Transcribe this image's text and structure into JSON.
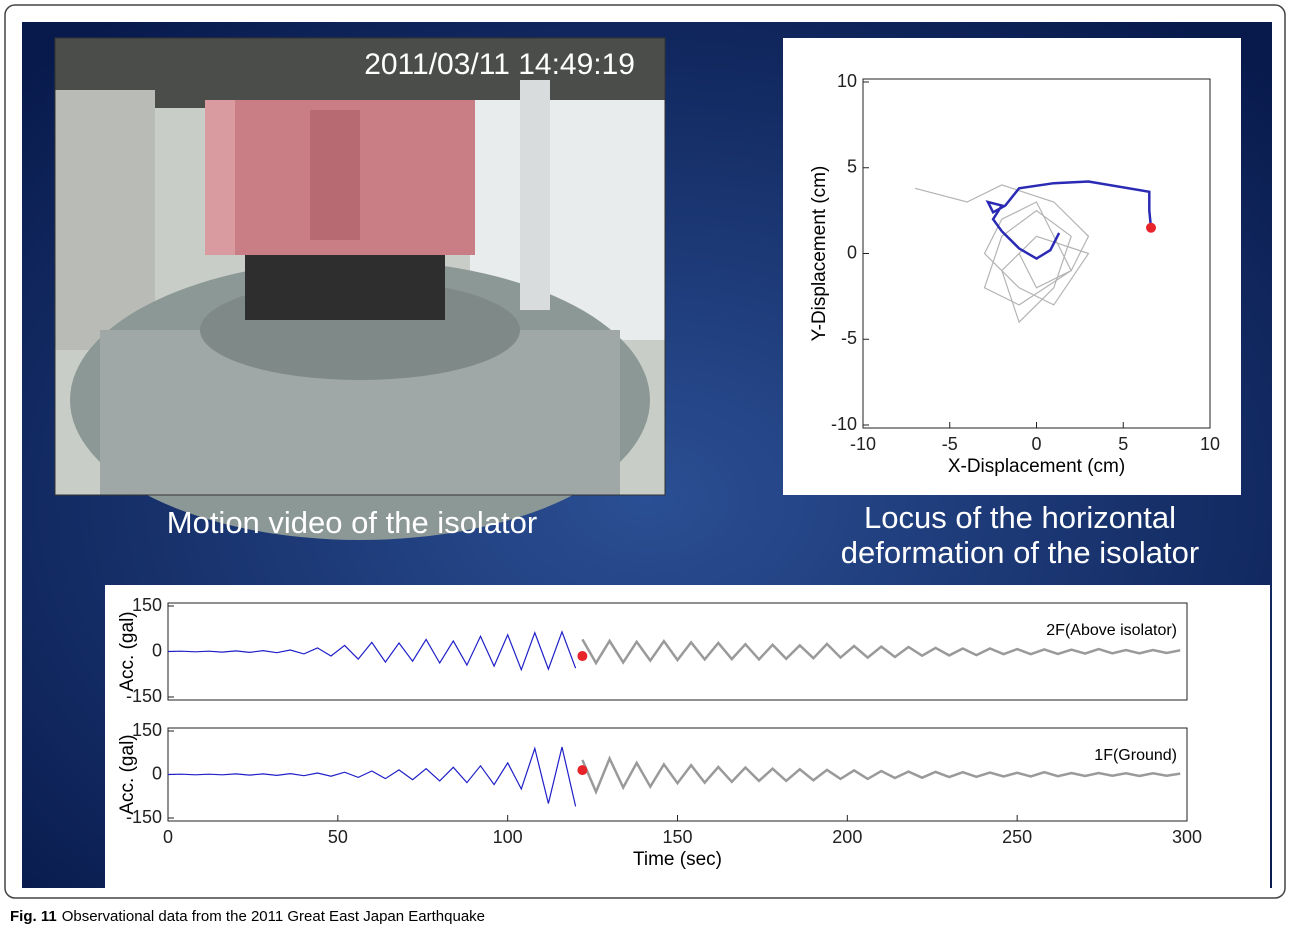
{
  "figure": {
    "caption_label": "Fig. 11",
    "caption": "Observational data from the 2011 Great East Japan Earthquake"
  },
  "video": {
    "timestamp": "2011/03/11  14:49:19",
    "label": "Motion video of the isolator"
  },
  "chart_data": [
    {
      "type": "line",
      "title_lines": [
        "Locus of the horizontal",
        "deformation of the isolator"
      ],
      "x_label": "X-Displacement (cm)",
      "y_label": "Y-Displacement (cm)",
      "xlim": [
        -10,
        10
      ],
      "ylim": [
        -10,
        10
      ],
      "xticks": [
        -10,
        -5,
        0,
        5,
        10
      ],
      "yticks": [
        -10,
        -5,
        0,
        5,
        10
      ],
      "series": [
        {
          "color": "#b4b4b4",
          "x": [
            -7,
            -4,
            -2,
            1,
            3,
            2,
            -1,
            -3,
            -2,
            0,
            2,
            1,
            -1,
            -2,
            0,
            3,
            1,
            -1,
            -3,
            -2,
            0,
            2,
            0,
            -1
          ],
          "values": [
            3.8,
            3,
            4,
            3,
            1,
            -1,
            -3,
            -2,
            1,
            2.5,
            1,
            -2,
            -4,
            -1,
            1,
            0,
            -3,
            -2,
            0,
            2,
            3,
            -1,
            -2,
            0
          ]
        },
        {
          "color": "#2a2ab4",
          "x": [
            1.3,
            0.8,
            0,
            -1,
            -2,
            -2.5,
            -2,
            -2.8,
            -2.5,
            -1.8,
            -1,
            1,
            3,
            6.5,
            6.5,
            6.6
          ],
          "values": [
            1.2,
            0.2,
            -0.3,
            0.3,
            1.3,
            2,
            2.8,
            3,
            2.4,
            2.8,
            3.8,
            4.1,
            4.2,
            3.6,
            2.5,
            1.5
          ]
        }
      ],
      "marker": {
        "color": "#e8242a",
        "x": 6.6,
        "y": 1.5
      }
    },
    {
      "type": "line",
      "annotation": "2F(Above isolator)",
      "y_label": "Acc. (gal)",
      "xlim": [
        0,
        300
      ],
      "ylim": [
        -150,
        150
      ],
      "yticks": [
        150,
        0,
        -150
      ],
      "series": [
        {
          "color": "#1f1fc8",
          "x": [
            0,
            4,
            8,
            12,
            16,
            20,
            24,
            28,
            32,
            36,
            40,
            44,
            48,
            52,
            56,
            60,
            64,
            68,
            72,
            76,
            80,
            84,
            88,
            92,
            96,
            100,
            104,
            108,
            112,
            116,
            120
          ],
          "values": [
            0,
            1,
            -1,
            1,
            -2,
            2,
            -3,
            3,
            -4,
            5,
            -8,
            12,
            -15,
            20,
            -25,
            30,
            -35,
            28,
            -32,
            40,
            -38,
            35,
            -45,
            50,
            -48,
            55,
            -60,
            62,
            -58,
            65,
            -55
          ]
        },
        {
          "color": "#9a9a9a",
          "x": [
            122,
            126,
            130,
            134,
            138,
            142,
            146,
            150,
            154,
            158,
            162,
            166,
            170,
            174,
            178,
            182,
            186,
            190,
            194,
            198,
            202,
            206,
            210,
            214,
            218,
            222,
            226,
            230,
            234,
            238,
            242,
            246,
            250,
            254,
            258,
            262,
            266,
            270,
            274,
            278,
            282,
            286,
            290,
            294,
            298
          ],
          "values": [
            40,
            -38,
            35,
            -36,
            32,
            -30,
            34,
            -28,
            30,
            -26,
            28,
            -25,
            24,
            -26,
            22,
            -24,
            20,
            -22,
            25,
            -20,
            18,
            -20,
            16,
            -18,
            15,
            -14,
            12,
            -13,
            10,
            -12,
            10,
            -9,
            8,
            -9,
            7,
            -8,
            6,
            -7,
            8,
            -6,
            5,
            -6,
            5,
            -5,
            4
          ]
        }
      ],
      "marker": {
        "color": "#e8242a",
        "x": 122,
        "y": -15
      }
    },
    {
      "type": "line",
      "annotation": "1F(Ground)",
      "y_label": "Acc. (gal)",
      "x_label": "Time (sec)",
      "xlim": [
        0,
        300
      ],
      "ylim": [
        -150,
        150
      ],
      "yticks": [
        150,
        0,
        -150
      ],
      "xticks": [
        0,
        50,
        100,
        150,
        200,
        250,
        300
      ],
      "series": [
        {
          "color": "#1f1fc8",
          "x": [
            0,
            4,
            8,
            12,
            16,
            20,
            24,
            28,
            32,
            36,
            40,
            44,
            48,
            52,
            56,
            60,
            64,
            68,
            72,
            76,
            80,
            84,
            88,
            92,
            96,
            100,
            104,
            108,
            112,
            116,
            120
          ],
          "values": [
            0,
            1,
            -1,
            1,
            -1,
            2,
            -2,
            2,
            -3,
            3,
            -4,
            5,
            -6,
            8,
            -10,
            12,
            -14,
            16,
            -18,
            20,
            -22,
            25,
            -28,
            30,
            -35,
            40,
            -50,
            90,
            -100,
            95,
            -110
          ]
        },
        {
          "color": "#9a9a9a",
          "x": [
            122,
            126,
            130,
            134,
            138,
            142,
            146,
            150,
            154,
            158,
            162,
            166,
            170,
            174,
            178,
            182,
            186,
            190,
            194,
            198,
            202,
            206,
            210,
            214,
            218,
            222,
            226,
            230,
            234,
            238,
            242,
            246,
            250,
            254,
            258,
            262,
            266,
            270,
            274,
            278,
            282,
            286,
            290,
            294,
            298
          ],
          "values": [
            50,
            -60,
            55,
            -45,
            40,
            -42,
            35,
            -30,
            32,
            -28,
            26,
            -25,
            24,
            -22,
            20,
            -22,
            18,
            -20,
            16,
            -15,
            14,
            -15,
            12,
            -12,
            10,
            -11,
            9,
            -9,
            8,
            -8,
            7,
            -7,
            6,
            -7,
            8,
            -6,
            5,
            -5,
            5,
            -4,
            4,
            -5,
            4,
            -4,
            3
          ]
        }
      ],
      "marker": {
        "color": "#e8242a",
        "x": 122,
        "y": 15
      }
    }
  ]
}
